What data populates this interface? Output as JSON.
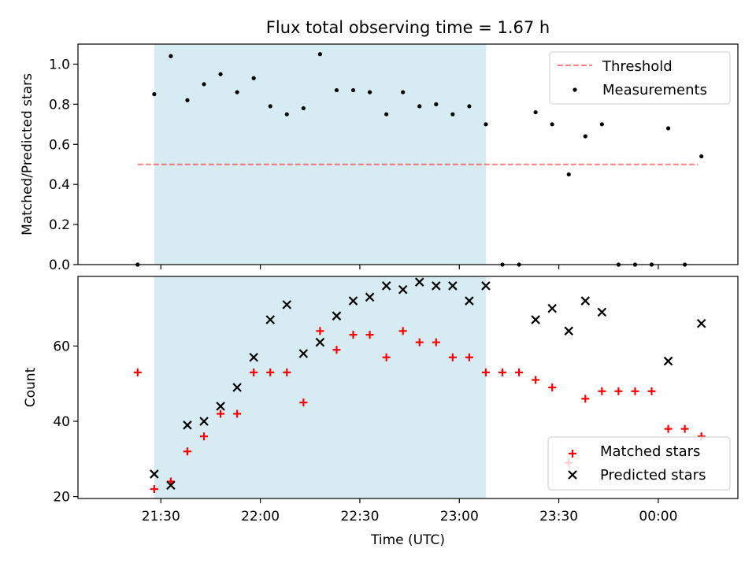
{
  "title": "Flux total observing time = 1.67 h",
  "colors": {
    "shade": "#add8e6",
    "threshold": "#ff0000",
    "matched": "#ff0000",
    "predicted": "#000000",
    "measurement": "#000000"
  },
  "chart_data": [
    {
      "type": "scatter",
      "ylabel": "Matched/Predicted stars",
      "ylim": [
        0,
        1.1
      ],
      "yticks": [
        0.0,
        0.2,
        0.4,
        0.6,
        0.8,
        1.0
      ],
      "ytick_labels": [
        "0.0",
        "0.2",
        "0.4",
        "0.6",
        "0.8",
        "1.0"
      ],
      "xlim": [
        "21:05",
        "00:24"
      ],
      "shaded_span": [
        "21:28",
        "23:08"
      ],
      "legend_position": "top-right",
      "legend": [
        "Threshold",
        "Measurements"
      ],
      "threshold": {
        "name": "Threshold",
        "y": 0.5,
        "x": [
          "21:23",
          "00:12"
        ]
      },
      "series": [
        {
          "name": "Measurements",
          "points": [
            [
              "21:23",
              0.0
            ],
            [
              "21:28",
              0.85
            ],
            [
              "21:33",
              1.04
            ],
            [
              "21:38",
              0.82
            ],
            [
              "21:43",
              0.9
            ],
            [
              "21:48",
              0.95
            ],
            [
              "21:53",
              0.86
            ],
            [
              "21:58",
              0.93
            ],
            [
              "22:03",
              0.79
            ],
            [
              "22:08",
              0.75
            ],
            [
              "22:13",
              0.78
            ],
            [
              "22:18",
              1.05
            ],
            [
              "22:23",
              0.87
            ],
            [
              "22:28",
              0.87
            ],
            [
              "22:33",
              0.86
            ],
            [
              "22:38",
              0.75
            ],
            [
              "22:43",
              0.86
            ],
            [
              "22:48",
              0.79
            ],
            [
              "22:53",
              0.8
            ],
            [
              "22:58",
              0.75
            ],
            [
              "23:03",
              0.79
            ],
            [
              "23:08",
              0.7
            ],
            [
              "23:13",
              0.0
            ],
            [
              "23:18",
              0.0
            ],
            [
              "23:23",
              0.76
            ],
            [
              "23:28",
              0.7
            ],
            [
              "23:33",
              0.45
            ],
            [
              "23:38",
              0.64
            ],
            [
              "23:43",
              0.7
            ],
            [
              "23:48",
              0.0
            ],
            [
              "23:53",
              0.0
            ],
            [
              "23:58",
              0.0
            ],
            [
              "00:03",
              0.68
            ],
            [
              "00:08",
              0.0
            ],
            [
              "00:13",
              0.54
            ]
          ]
        }
      ]
    },
    {
      "type": "scatter",
      "ylabel": "Count",
      "xlabel": "Time (UTC)",
      "ylim": [
        19.5,
        78.5
      ],
      "yticks": [
        20,
        40,
        60
      ],
      "ytick_labels": [
        "20",
        "40",
        "60"
      ],
      "xlim": [
        "21:05",
        "00:24"
      ],
      "xticks": [
        "21:30",
        "22:00",
        "22:30",
        "23:00",
        "23:30",
        "00:00"
      ],
      "xtick_labels": [
        "21:30",
        "22:00",
        "22:30",
        "23:00",
        "23:30",
        "00:00"
      ],
      "shaded_span": [
        "21:28",
        "23:08"
      ],
      "legend_position": "bottom-right",
      "legend": [
        "Matched stars",
        "Predicted stars"
      ],
      "series": [
        {
          "name": "Matched stars",
          "marker": "plus",
          "points": [
            [
              "21:23",
              53
            ],
            [
              "21:28",
              22
            ],
            [
              "21:33",
              24
            ],
            [
              "21:38",
              32
            ],
            [
              "21:43",
              36
            ],
            [
              "21:48",
              42
            ],
            [
              "21:53",
              42
            ],
            [
              "21:58",
              53
            ],
            [
              "22:03",
              53
            ],
            [
              "22:08",
              53
            ],
            [
              "22:13",
              45
            ],
            [
              "22:18",
              64
            ],
            [
              "22:23",
              59
            ],
            [
              "22:28",
              63
            ],
            [
              "22:33",
              63
            ],
            [
              "22:38",
              57
            ],
            [
              "22:43",
              64
            ],
            [
              "22:48",
              61
            ],
            [
              "22:53",
              61
            ],
            [
              "22:58",
              57
            ],
            [
              "23:03",
              57
            ],
            [
              "23:08",
              53
            ],
            [
              "23:13",
              53
            ],
            [
              "23:18",
              53
            ],
            [
              "23:23",
              51
            ],
            [
              "23:28",
              49
            ],
            [
              "23:33",
              29
            ],
            [
              "23:38",
              46
            ],
            [
              "23:43",
              48
            ],
            [
              "23:48",
              48
            ],
            [
              "23:53",
              48
            ],
            [
              "23:58",
              48
            ],
            [
              "00:03",
              38
            ],
            [
              "00:08",
              38
            ],
            [
              "00:13",
              36
            ]
          ]
        },
        {
          "name": "Predicted stars",
          "marker": "x",
          "points": [
            [
              "21:28",
              26
            ],
            [
              "21:33",
              23
            ],
            [
              "21:38",
              39
            ],
            [
              "21:43",
              40
            ],
            [
              "21:48",
              44
            ],
            [
              "21:53",
              49
            ],
            [
              "21:58",
              57
            ],
            [
              "22:03",
              67
            ],
            [
              "22:08",
              71
            ],
            [
              "22:13",
              58
            ],
            [
              "22:18",
              61
            ],
            [
              "22:23",
              68
            ],
            [
              "22:28",
              72
            ],
            [
              "22:33",
              73
            ],
            [
              "22:38",
              76
            ],
            [
              "22:43",
              75
            ],
            [
              "22:48",
              77
            ],
            [
              "22:53",
              76
            ],
            [
              "22:58",
              76
            ],
            [
              "23:03",
              72
            ],
            [
              "23:08",
              76
            ],
            [
              "23:23",
              67
            ],
            [
              "23:28",
              70
            ],
            [
              "23:33",
              64
            ],
            [
              "23:38",
              72
            ],
            [
              "23:43",
              69
            ],
            [
              "00:03",
              56
            ],
            [
              "00:13",
              66
            ]
          ]
        }
      ]
    }
  ]
}
